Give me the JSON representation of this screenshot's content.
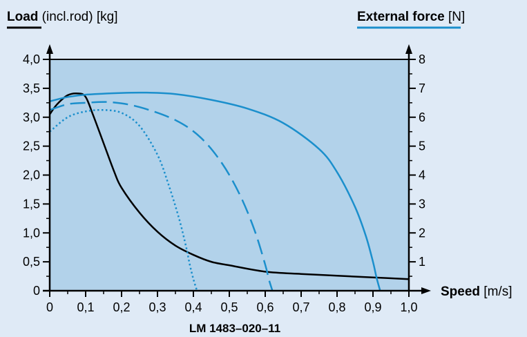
{
  "chart_data": {
    "type": "line",
    "left_axis": {
      "label_bold": "Load",
      "label_rest": " (incl.rod) [kg]",
      "range": [
        0,
        4
      ],
      "ticks": [
        "0",
        "0,5",
        "1,0",
        "1,5",
        "2,0",
        "2,5",
        "3,0",
        "3,5",
        "4,0"
      ],
      "tick_values": [
        0,
        0.5,
        1,
        1.5,
        2,
        2.5,
        3,
        3.5,
        4
      ]
    },
    "right_axis": {
      "label_bold": "External force",
      "label_rest": " [N]",
      "range": [
        0,
        8
      ],
      "ticks": [
        "1",
        "2",
        "3",
        "4",
        "5",
        "6",
        "7",
        "8"
      ],
      "tick_values": [
        1,
        2,
        3,
        4,
        5,
        6,
        7,
        8
      ]
    },
    "x_axis": {
      "label_bold": "Speed",
      "label_rest": " [m/s]",
      "range": [
        0,
        1
      ],
      "ticks": [
        "0",
        "0,1",
        "0,2",
        "0,3",
        "0,4",
        "0,5",
        "0,6",
        "0,7",
        "0,8",
        "0,9",
        "1,0"
      ],
      "tick_values": [
        0,
        0.1,
        0.2,
        0.3,
        0.4,
        0.5,
        0.6,
        0.7,
        0.8,
        0.9,
        1.0
      ]
    },
    "caption": "LM 1483–020–11",
    "series": [
      {
        "axis": "left",
        "color": "#000000",
        "style": "solid",
        "x": [
          0,
          0.02,
          0.05,
          0.08,
          0.1,
          0.12,
          0.15,
          0.18,
          0.2,
          0.25,
          0.3,
          0.35,
          0.4,
          0.45,
          0.5,
          0.6,
          0.7,
          0.8,
          0.9,
          1.0
        ],
        "y": [
          3.05,
          3.22,
          3.38,
          3.41,
          3.35,
          3.05,
          2.55,
          2.05,
          1.78,
          1.35,
          1.02,
          0.78,
          0.62,
          0.5,
          0.44,
          0.33,
          0.29,
          0.26,
          0.23,
          0.2
        ]
      },
      {
        "axis": "right",
        "color": "#1b8fcc",
        "style": "solid",
        "x": [
          0,
          0.05,
          0.1,
          0.2,
          0.27,
          0.35,
          0.45,
          0.55,
          0.65,
          0.75,
          0.8,
          0.85,
          0.88,
          0.9,
          0.91,
          0.92
        ],
        "y": [
          6.55,
          6.7,
          6.78,
          6.84,
          6.85,
          6.8,
          6.6,
          6.3,
          5.8,
          4.9,
          4.1,
          2.9,
          1.9,
          1.0,
          0.45,
          0
        ]
      },
      {
        "axis": "right",
        "color": "#1b8fcc",
        "style": "dashed",
        "x": [
          0,
          0.05,
          0.1,
          0.17,
          0.25,
          0.35,
          0.42,
          0.48,
          0.53,
          0.57,
          0.6,
          0.61,
          0.62
        ],
        "y": [
          6.25,
          6.45,
          6.5,
          6.52,
          6.35,
          5.9,
          5.3,
          4.4,
          3.3,
          2.1,
          0.9,
          0.4,
          0
        ]
      },
      {
        "axis": "right",
        "color": "#1b8fcc",
        "style": "dotted",
        "x": [
          0,
          0.05,
          0.1,
          0.15,
          0.2,
          0.25,
          0.3,
          0.33,
          0.36,
          0.38,
          0.39,
          0.4,
          0.41
        ],
        "y": [
          5.5,
          6.0,
          6.2,
          6.25,
          6.15,
          5.7,
          4.7,
          3.7,
          2.5,
          1.5,
          0.9,
          0.4,
          0
        ]
      }
    ]
  }
}
